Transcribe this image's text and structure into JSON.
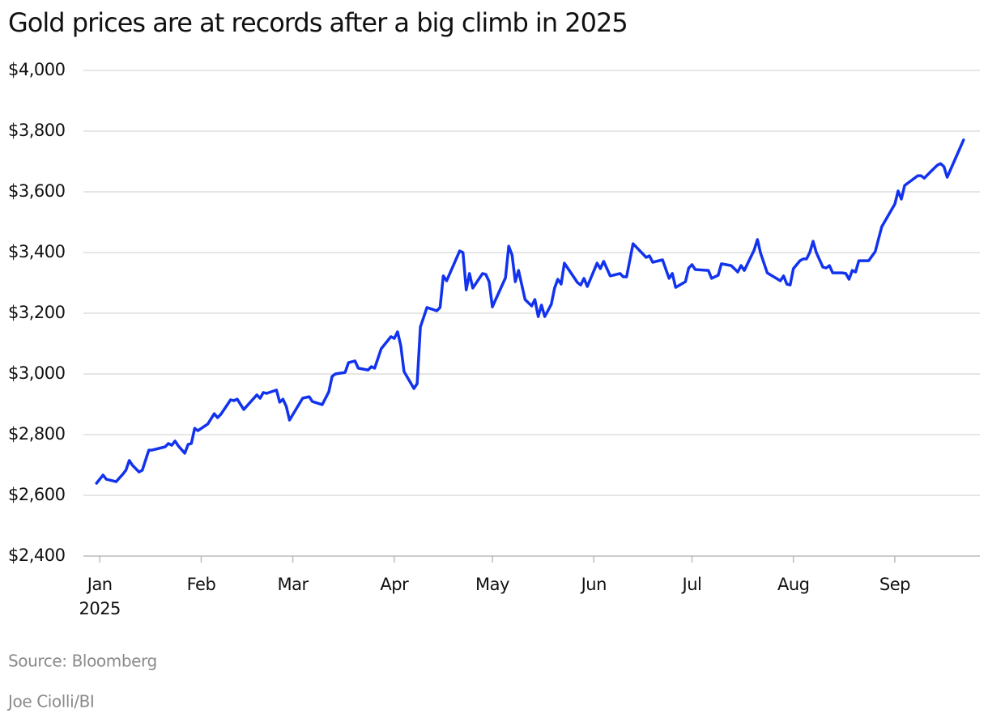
{
  "chart_data": {
    "type": "line",
    "title": "Gold prices are at records after a big climb in 2025",
    "source": "Source: Bloomberg",
    "credit": "Joe Ciolli/BI",
    "color": "#1233ee",
    "grid": true,
    "xlim": [
      -5,
      269
    ],
    "ylim": [
      2400,
      4000
    ],
    "yticks": [
      {
        "value": 2400,
        "label": "$2,400"
      },
      {
        "value": 2600,
        "label": "$2,600"
      },
      {
        "value": 2800,
        "label": "$2,800"
      },
      {
        "value": 3000,
        "label": "$3,000"
      },
      {
        "value": 3200,
        "label": "$3,200"
      },
      {
        "value": 3400,
        "label": "$3,400"
      },
      {
        "value": 3600,
        "label": "$3,600"
      },
      {
        "value": 3800,
        "label": "$3,800"
      },
      {
        "value": 4000,
        "label": "$4,000"
      }
    ],
    "xticks": [
      {
        "value": 0,
        "label": "Jan 2025"
      },
      {
        "value": 31,
        "label": "Feb"
      },
      {
        "value": 59,
        "label": "Mar"
      },
      {
        "value": 90,
        "label": "Apr"
      },
      {
        "value": 120,
        "label": "May"
      },
      {
        "value": 151,
        "label": "Jun"
      },
      {
        "value": 181,
        "label": "Jul"
      },
      {
        "value": 212,
        "label": "Aug"
      },
      {
        "value": 243,
        "label": "Sep"
      }
    ],
    "x": [
      -1,
      1,
      2,
      5,
      7,
      8,
      9,
      10,
      12,
      13,
      15,
      16,
      20,
      21,
      22,
      23,
      24,
      26,
      27,
      28,
      29,
      30,
      33,
      35,
      36,
      37,
      40,
      41,
      42,
      44,
      48,
      49,
      50,
      51,
      54,
      55,
      56,
      57,
      58,
      62,
      64,
      65,
      68,
      70,
      71,
      72,
      75,
      76,
      78,
      79,
      82,
      83,
      84,
      86,
      89,
      90,
      91,
      92,
      93,
      96,
      97,
      98,
      100,
      103,
      104,
      105,
      106,
      110,
      111,
      112,
      113,
      114,
      117,
      118,
      119,
      120,
      124,
      125,
      126,
      127,
      128,
      130,
      132,
      133,
      134,
      135,
      136,
      138,
      139,
      140,
      141,
      142,
      146,
      147,
      148,
      149,
      152,
      153,
      154,
      156,
      159,
      160,
      161,
      163,
      167,
      168,
      169,
      172,
      174,
      175,
      176,
      179,
      180,
      181,
      182,
      186,
      187,
      189,
      190,
      193,
      195,
      196,
      197,
      200,
      201,
      202,
      204,
      208,
      209,
      210,
      211,
      212,
      214,
      215,
      216,
      217,
      218,
      219,
      221,
      222,
      223,
      224,
      227,
      228,
      229,
      230,
      231,
      232,
      235,
      237,
      239,
      243,
      244,
      245,
      246,
      249,
      250,
      251,
      252,
      254,
      256,
      257,
      258,
      259,
      264
    ],
    "values": [
      2640,
      2667,
      2653,
      2645,
      2669,
      2683,
      2715,
      2699,
      2677,
      2683,
      2749,
      2749,
      2760,
      2771,
      2765,
      2779,
      2763,
      2739,
      2768,
      2771,
      2821,
      2813,
      2835,
      2869,
      2856,
      2867,
      2915,
      2912,
      2917,
      2883,
      2931,
      2920,
      2939,
      2936,
      2947,
      2907,
      2917,
      2893,
      2848,
      2920,
      2925,
      2909,
      2899,
      2941,
      2992,
      3000,
      3005,
      3037,
      3043,
      3019,
      3013,
      3024,
      3019,
      3083,
      3123,
      3117,
      3139,
      3093,
      3008,
      2952,
      2968,
      3155,
      3219,
      3208,
      3219,
      3323,
      3307,
      3405,
      3400,
      3277,
      3331,
      3283,
      3331,
      3328,
      3304,
      3221,
      3317,
      3421,
      3392,
      3304,
      3341,
      3245,
      3224,
      3245,
      3189,
      3227,
      3189,
      3229,
      3283,
      3312,
      3296,
      3365,
      3301,
      3293,
      3315,
      3288,
      3365,
      3347,
      3371,
      3323,
      3331,
      3320,
      3320,
      3429,
      3384,
      3389,
      3368,
      3376,
      3315,
      3331,
      3285,
      3304,
      3349,
      3360,
      3344,
      3341,
      3315,
      3325,
      3363,
      3357,
      3336,
      3357,
      3341,
      3408,
      3443,
      3397,
      3333,
      3307,
      3323,
      3296,
      3293,
      3347,
      3373,
      3379,
      3379,
      3400,
      3437,
      3400,
      3352,
      3349,
      3357,
      3333,
      3333,
      3331,
      3312,
      3341,
      3336,
      3373,
      3373,
      3403,
      3485,
      3560,
      3603,
      3576,
      3621,
      3645,
      3653,
      3653,
      3645,
      3667,
      3688,
      3693,
      3683,
      3648,
      3771
    ]
  }
}
